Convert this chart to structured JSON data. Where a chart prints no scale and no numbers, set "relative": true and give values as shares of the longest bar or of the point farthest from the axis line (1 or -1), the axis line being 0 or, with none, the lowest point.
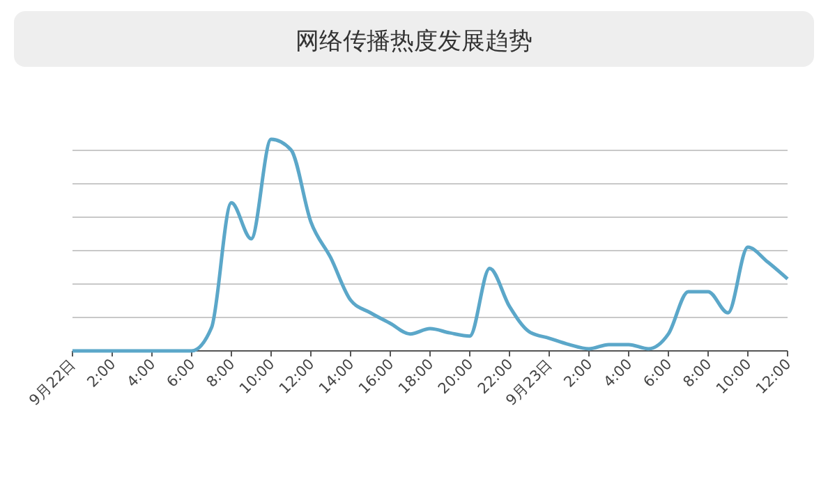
{
  "chart_data": {
    "type": "line",
    "title": "网络传播热度发展趋势",
    "relative": true,
    "grid": "y",
    "marker": "none",
    "line_style": "solid",
    "categories": [
      "9月22日",
      null,
      "2:00",
      null,
      "4:00",
      null,
      "6:00",
      null,
      "8:00",
      null,
      "10:00",
      null,
      "12:00",
      null,
      "14:00",
      null,
      "16:00",
      null,
      "18:00",
      null,
      "20:00",
      null,
      "22:00",
      null,
      "9月23日",
      null,
      "2:00",
      null,
      "4:00",
      null,
      "6:00",
      null,
      "8:00",
      null,
      "10:00",
      null,
      "12:00"
    ],
    "series": [
      {
        "color": "#5ba7c9",
        "values": [
          0,
          0,
          0,
          0,
          0,
          0,
          0,
          0.11,
          0.7,
          0.53,
          1,
          0.95,
          0.61,
          0.44,
          0.24,
          0.18,
          0.13,
          0.08,
          0.105,
          0.085,
          0.07,
          0.39,
          0.21,
          0.09,
          0.06,
          0.03,
          0.01,
          0.03,
          0.03,
          0.01,
          0.08,
          0.28,
          0.28,
          0.18,
          0.49,
          0.42,
          0.34
        ]
      }
    ]
  }
}
